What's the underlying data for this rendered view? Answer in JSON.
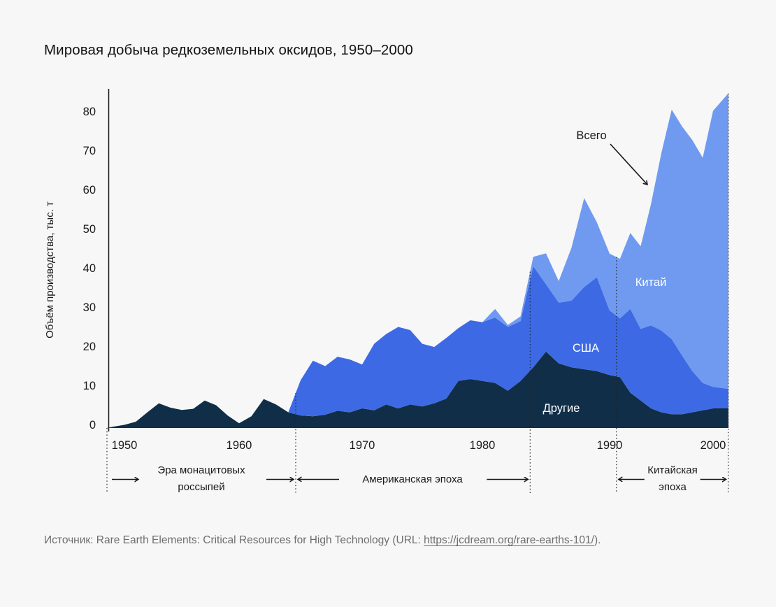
{
  "title": "Мировая добыча редкоземельных оксидов, 1950–2000",
  "y_axis": {
    "label": "Объём производства, тыс. т",
    "ticks": [
      0,
      10,
      20,
      30,
      40,
      50,
      60,
      70,
      80
    ]
  },
  "x_axis": {
    "ticks": [
      1950,
      1960,
      1970,
      1980,
      1990,
      2000
    ]
  },
  "annotations": {
    "total": "Всего",
    "china": "Китай",
    "usa": "США",
    "other": "Другие"
  },
  "eras": [
    {
      "lines": [
        "Эра монацитовых",
        "россыпей"
      ],
      "start_year": 1948.5,
      "end_year": 1964.6
    },
    {
      "lines": [
        "Американская эпоха"
      ],
      "start_year": 1964.6,
      "end_year": 1983.75
    },
    {
      "lines": [
        "Китайская",
        "эпоха"
      ],
      "start_year": 1990.66,
      "end_year": 2001.47
    }
  ],
  "era_boundaries": [
    1948.5,
    1964.6,
    1983.75,
    1990.66,
    2001.47
  ],
  "source": {
    "prefix": "Источник: Rare Earth Elements: Critical Resources for High Technology (URL: ",
    "link_text": "https://jcdream.org/rare-earths-101/",
    "suffix": ")."
  },
  "colors": {
    "background": "#f7f7f8",
    "other_area": "#112e48",
    "usa_area": "#3d6ae4",
    "china_area": "#6f9af0",
    "text": "#161616",
    "muted_text": "#6e6e6e"
  },
  "chart_data": {
    "type": "area",
    "stacked": true,
    "title": "Мировая добыча редкоземельных оксидов, 1950–2000",
    "xlabel": "",
    "ylabel": "Объём производства, тыс. т",
    "unit": "тыс. т REO",
    "ylim": [
      0,
      85
    ],
    "grid": false,
    "legend_position": "in-chart-labels",
    "total_label": "Всего",
    "xticks": [
      1950,
      1960,
      1970,
      1980,
      1990,
      2000
    ],
    "yticks": [
      0,
      10,
      20,
      30,
      40,
      50,
      60,
      70,
      80
    ],
    "x": [
      1948.5,
      1949,
      1950,
      1951,
      1952,
      1953,
      1954,
      1955,
      1956,
      1957,
      1958,
      1959,
      1960,
      1961,
      1962,
      1963,
      1964,
      1965,
      1966,
      1967,
      1968,
      1969,
      1970,
      1971,
      1972,
      1973,
      1974,
      1975,
      1976,
      1977,
      1978,
      1979,
      1980,
      1981,
      1982,
      1983,
      1984,
      1985,
      1986,
      1987,
      1988,
      1989,
      1990,
      1991,
      1992,
      1993,
      1994,
      1995,
      1996,
      1997,
      1998,
      1999,
      2000,
      2001.5
    ],
    "series": [
      {
        "name": "Другие",
        "values": [
          0,
          0.3,
          0.8,
          1.6,
          4.0,
          6.3,
          5.2,
          4.6,
          4.9,
          7.0,
          5.8,
          3.2,
          1.2,
          3.0,
          7.4,
          6.0,
          4.0,
          3.2,
          3.0,
          3.4,
          4.4,
          4.0,
          5.0,
          4.5,
          6.0,
          5.0,
          6.0,
          5.5,
          6.3,
          7.5,
          12.0,
          12.5,
          12.0,
          11.5,
          9.5,
          12.0,
          15.5,
          19.5,
          16.5,
          15.5,
          15.0,
          14.5,
          13.5,
          13.0,
          9.0,
          7.0,
          5.0,
          4.0,
          3.5,
          3.5,
          4.0,
          4.5,
          5.0,
          5.0
        ]
      },
      {
        "name": "США",
        "values": [
          0,
          0,
          0,
          0,
          0,
          0,
          0,
          0,
          0,
          0,
          0,
          0,
          0,
          0,
          0,
          0,
          0,
          9.0,
          14.2,
          12.4,
          13.8,
          13.5,
          11.2,
          17.0,
          18.0,
          20.8,
          19.0,
          16.0,
          14.4,
          15.5,
          13.5,
          15.0,
          15.0,
          16.7,
          16.3,
          15.3,
          25.8,
          17.2,
          15.5,
          17.0,
          21.0,
          24.0,
          16.5,
          15.0,
          21.4,
          18.3,
          21.2,
          20.9,
          19.2,
          15.0,
          10.5,
          7.0,
          5.5,
          5.0
        ]
      },
      {
        "name": "Китай",
        "values": [
          0,
          0,
          0,
          0,
          0,
          0,
          0,
          0,
          0,
          0,
          0,
          0,
          0,
          0,
          0,
          0,
          0,
          0,
          0,
          0,
          0,
          0,
          0,
          0,
          0,
          0,
          0,
          0,
          0,
          0,
          0,
          0,
          0,
          2.2,
          0.5,
          1.2,
          2.4,
          7.9,
          5.5,
          13.5,
          22.7,
          14.0,
          14.5,
          15.2,
          19.4,
          21.1,
          31.0,
          45.3,
          58.6,
          58.5,
          59.0,
          57.5,
          70.5,
          75.5
        ]
      }
    ]
  }
}
